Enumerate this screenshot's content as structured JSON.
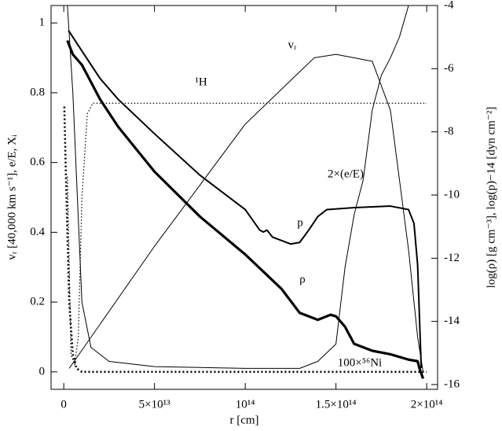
{
  "chart_data": {
    "type": "line",
    "xlabel": "r [cm]",
    "ylabel": "vᵣ [40,000 km s⁻¹], e/E, Xᵢ",
    "y2label": "log(ρ) [g cm⁻³], log(p)−14 [dyn cm⁻²]",
    "xlim": [
      -7000000000000.0,
      206000000000000.0
    ],
    "ylim": [
      -0.05,
      1.05
    ],
    "y2lim": [
      -16.15,
      -4
    ],
    "xticks": [
      {
        "value": 0,
        "label": "0"
      },
      {
        "value": 50000000000000.0,
        "label": "5×10¹³"
      },
      {
        "value": 100000000000000.0,
        "label": "10¹⁴"
      },
      {
        "value": 150000000000000.0,
        "label": "1.5×10¹⁴"
      },
      {
        "value": 200000000000000.0,
        "label": "2×10¹⁴"
      }
    ],
    "yticks": [
      0,
      0.2,
      0.4,
      0.6,
      0.8,
      1
    ],
    "y2ticks": [
      -4,
      -6,
      -8,
      -10,
      -12,
      -14,
      -16
    ],
    "series": [
      {
        "name": "vᵣ",
        "color": "#000",
        "style": "thin",
        "x": [
          3000000000000.0,
          50000000000000.0,
          100000000000000.0,
          130000000000000.0,
          138000000000000.0,
          150000000000000.0,
          160000000000000.0,
          170000000000000.0,
          180000000000000.0,
          190000000000000.0,
          195000000000000.0,
          198000000000000.0
        ],
        "values": [
          0.01,
          0.36,
          0.71,
          0.86,
          0.9,
          0.91,
          0.9,
          0.89,
          0.75,
          0.35,
          0.1,
          0.0
        ]
      },
      {
        "name": "2×(e/E)",
        "color": "#000",
        "style": "thin",
        "x": [
          2000000000000.0,
          5000000000000.0,
          10000000000000.0,
          15000000000000.0,
          25000000000000.0,
          50000000000000.0,
          100000000000000.0,
          130000000000000.0,
          140000000000000.0,
          150000000000000.0,
          155000000000000.0,
          160000000000000.0,
          165000000000000.0,
          170000000000000.0,
          175000000000000.0,
          180000000000000.0,
          185000000000000.0,
          190000000000000.0
        ],
        "values": [
          1.05,
          0.8,
          0.2,
          0.07,
          0.03,
          0.015,
          0.01,
          0.01,
          0.03,
          0.08,
          0.3,
          0.45,
          0.55,
          0.75,
          0.85,
          0.9,
          0.96,
          1.05
        ]
      },
      {
        "name": "p",
        "color": "#000",
        "style": "medium",
        "axis": "y2",
        "x": [
          2600000000000.0,
          10000000000000.0,
          20000000000000.0,
          30000000000000.0,
          50000000000000.0,
          75000000000000.0,
          100000000000000.0,
          108000000000000.0,
          110000000000000.0,
          112000000000000.0,
          115000000000000.0,
          125000000000000.0,
          130000000000000.0,
          135000000000000.0,
          140000000000000.0,
          145000000000000.0,
          160000000000000.0,
          180000000000000.0,
          190000000000000.0,
          193000000000000.0,
          195000000000000.0,
          197000000000000.0
        ],
        "values": [
          -4.79,
          -5.44,
          -6.31,
          -6.97,
          -8.06,
          -9.37,
          -10.46,
          -11.11,
          -11.17,
          -11.11,
          -11.33,
          -11.55,
          -11.5,
          -11.11,
          -10.68,
          -10.46,
          -10.4,
          -10.35,
          -10.46,
          -10.9,
          -12.21,
          -15.48
        ]
      },
      {
        "name": "ρ",
        "color": "#000",
        "style": "thick",
        "axis": "y2",
        "x": [
          2000000000000.0,
          5000000000000.0,
          10000000000000.0,
          20000000000000.0,
          30000000000000.0,
          50000000000000.0,
          75000000000000.0,
          100000000000000.0,
          120000000000000.0,
          130000000000000.0,
          140000000000000.0,
          147000000000000.0,
          150000000000000.0,
          155000000000000.0,
          160000000000000.0,
          170000000000000.0,
          180000000000000.0,
          190000000000000.0,
          195000000000000.0,
          196000000000000.0,
          198000000000000.0
        ],
        "values": [
          -5.11,
          -5.55,
          -5.88,
          -6.97,
          -7.84,
          -9.26,
          -10.68,
          -11.88,
          -12.97,
          -13.73,
          -13.95,
          -13.79,
          -13.84,
          -14.17,
          -14.71,
          -14.93,
          -15.04,
          -15.21,
          -15.26,
          -15.48,
          -15.81
        ]
      },
      {
        "name": "¹H",
        "color": "#000",
        "style": "dotted",
        "x": [
          2000000000000.0,
          4000000000000.0,
          6000000000000.0,
          8000000000000.0,
          10000000000000.0,
          13000000000000.0,
          16000000000000.0,
          50000000000000.0,
          100000000000000.0,
          150000000000000.0,
          200000000000000.0
        ],
        "values": [
          0.56,
          0.05,
          0.02,
          0.1,
          0.5,
          0.74,
          0.77,
          0.77,
          0.77,
          0.77,
          0.77
        ]
      },
      {
        "name": "100×⁵⁶Ni",
        "color": "#000",
        "style": "thick-dotted",
        "x": [
          300000000000.0,
          1000000000000.0,
          2000000000000.0,
          3000000000000.0,
          5000000000000.0,
          7000000000000.0,
          10000000000000.0,
          50000000000000.0,
          100000000000000.0,
          150000000000000.0,
          200000000000000.0
        ],
        "values": [
          0.76,
          0.6,
          0.4,
          0.2,
          0.05,
          0.01,
          0.0,
          0.0,
          0.0,
          0.0,
          0.0
        ]
      }
    ]
  }
}
